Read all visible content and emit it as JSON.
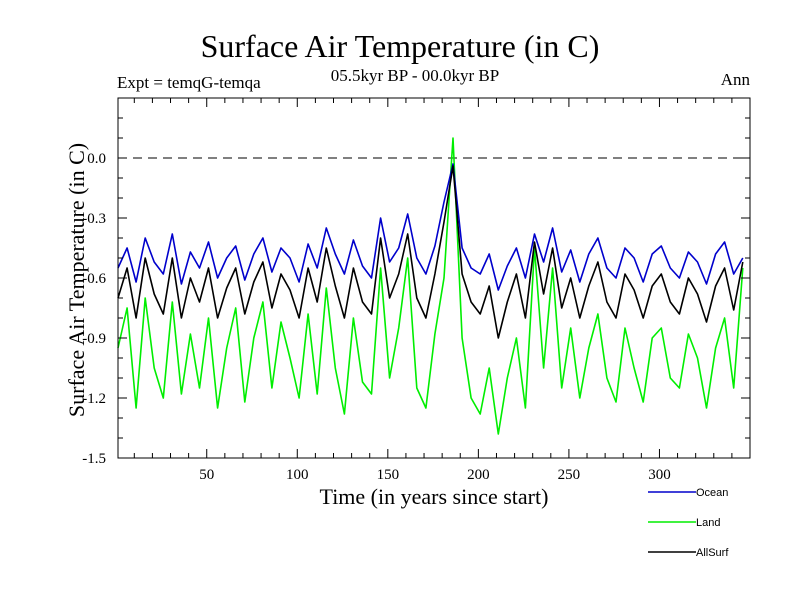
{
  "chart_data": {
    "type": "line",
    "title": "Surface Air Temperature (in C)",
    "subtitle_left": "Expt = temqG-temqa",
    "subtitle_center": "05.5kyr BP - 00.0kyr BP",
    "subtitle_right": "Ann",
    "xlabel": "Time (in years since start)",
    "ylabel": "Surface Air Temperature (in C)",
    "xlim": [
      1,
      350
    ],
    "ylim": [
      -1.5,
      0.3
    ],
    "xticks": [
      50,
      100,
      150,
      200,
      250,
      300
    ],
    "yticks": [
      0.0,
      -0.3,
      -0.6,
      -0.9,
      -1.2,
      -1.5
    ],
    "xtick_labels": [
      "50",
      "100",
      "150",
      "200",
      "250",
      "300"
    ],
    "ytick_labels": [
      "0.0",
      "-0.3",
      "-0.6",
      "-0.9",
      "-1.2",
      "-1.5"
    ],
    "reference_line": 0.0,
    "series_x_start": 1,
    "series_x_step": 5,
    "series": [
      {
        "name": "Ocean",
        "color": "#0000cc",
        "values": [
          -0.55,
          -0.45,
          -0.62,
          -0.4,
          -0.52,
          -0.58,
          -0.38,
          -0.63,
          -0.47,
          -0.55,
          -0.42,
          -0.6,
          -0.5,
          -0.44,
          -0.61,
          -0.48,
          -0.4,
          -0.57,
          -0.45,
          -0.5,
          -0.62,
          -0.43,
          -0.55,
          -0.35,
          -0.48,
          -0.58,
          -0.41,
          -0.54,
          -0.6,
          -0.3,
          -0.52,
          -0.45,
          -0.28,
          -0.5,
          -0.58,
          -0.44,
          -0.22,
          -0.03,
          -0.45,
          -0.55,
          -0.58,
          -0.48,
          -0.66,
          -0.54,
          -0.45,
          -0.6,
          -0.38,
          -0.52,
          -0.35,
          -0.57,
          -0.46,
          -0.62,
          -0.48,
          -0.4,
          -0.55,
          -0.6,
          -0.45,
          -0.5,
          -0.62,
          -0.48,
          -0.44,
          -0.55,
          -0.6,
          -0.47,
          -0.52,
          -0.63,
          -0.48,
          -0.42,
          -0.58,
          -0.5
        ]
      },
      {
        "name": "Land",
        "color": "#00ee00",
        "values": [
          -0.95,
          -0.75,
          -1.25,
          -0.7,
          -1.05,
          -1.2,
          -0.72,
          -1.18,
          -0.88,
          -1.15,
          -0.8,
          -1.25,
          -0.95,
          -0.75,
          -1.22,
          -0.9,
          -0.72,
          -1.15,
          -0.82,
          -1.0,
          -1.2,
          -0.78,
          -1.18,
          -0.65,
          -1.05,
          -1.28,
          -0.8,
          -1.12,
          -1.18,
          -0.55,
          -1.1,
          -0.85,
          -0.5,
          -1.15,
          -1.25,
          -0.88,
          -0.6,
          0.1,
          -0.9,
          -1.2,
          -1.28,
          -1.05,
          -1.38,
          -1.1,
          -0.9,
          -1.25,
          -0.45,
          -1.05,
          -0.55,
          -1.15,
          -0.85,
          -1.2,
          -0.95,
          -0.78,
          -1.1,
          -1.22,
          -0.85,
          -1.05,
          -1.22,
          -0.9,
          -0.85,
          -1.1,
          -1.15,
          -0.88,
          -1.0,
          -1.25,
          -0.95,
          -0.8,
          -1.15,
          -0.55
        ]
      },
      {
        "name": "AllSurf",
        "color": "#000000",
        "values": [
          -0.7,
          -0.55,
          -0.8,
          -0.5,
          -0.68,
          -0.78,
          -0.5,
          -0.8,
          -0.6,
          -0.72,
          -0.55,
          -0.8,
          -0.65,
          -0.55,
          -0.78,
          -0.62,
          -0.52,
          -0.75,
          -0.58,
          -0.66,
          -0.8,
          -0.55,
          -0.72,
          -0.45,
          -0.64,
          -0.8,
          -0.55,
          -0.72,
          -0.78,
          -0.4,
          -0.7,
          -0.58,
          -0.38,
          -0.7,
          -0.8,
          -0.58,
          -0.32,
          -0.04,
          -0.58,
          -0.72,
          -0.78,
          -0.64,
          -0.9,
          -0.72,
          -0.58,
          -0.8,
          -0.42,
          -0.68,
          -0.45,
          -0.75,
          -0.6,
          -0.8,
          -0.64,
          -0.52,
          -0.72,
          -0.8,
          -0.58,
          -0.66,
          -0.8,
          -0.64,
          -0.58,
          -0.72,
          -0.78,
          -0.6,
          -0.68,
          -0.82,
          -0.64,
          -0.55,
          -0.76,
          -0.52
        ]
      }
    ],
    "legend_position": "bottom-right"
  }
}
